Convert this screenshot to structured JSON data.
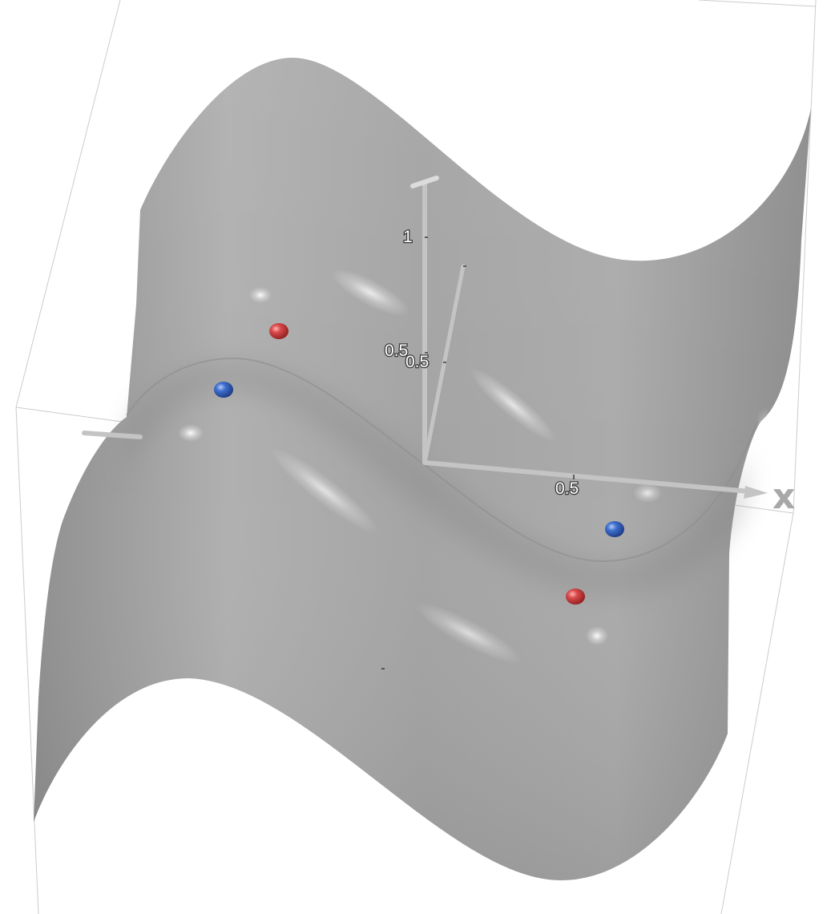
{
  "axes": {
    "x_label": "x",
    "z_ticks": [
      "1",
      "0.5"
    ],
    "y_tick": "0.5",
    "x_tick": "0.5"
  },
  "critical_points": {
    "maxima_color": "#c8393b",
    "minima_color": "#2f5fbf",
    "maxima_count": 2,
    "minima_count": 2
  },
  "surface_color": "#a6a6a6",
  "axis_color": "#bdbdbd",
  "box_color": "#c8c8c8"
}
